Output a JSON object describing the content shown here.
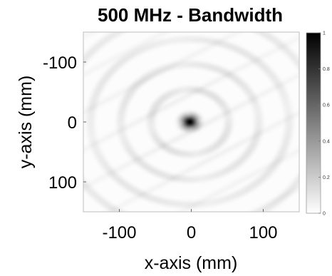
{
  "chart_data": {
    "type": "heatmap",
    "title": "500 MHz - Bandwidth",
    "xlabel": "x-axis (mm)",
    "ylabel": "y-axis (mm)",
    "xlim": [
      -150,
      150
    ],
    "ylim": [
      -150,
      150
    ],
    "y_reversed": true,
    "x_ticks": [
      {
        "value": -100,
        "label": "-100"
      },
      {
        "value": 0,
        "label": "0"
      },
      {
        "value": 100,
        "label": "100"
      }
    ],
    "y_ticks": [
      {
        "value": -100,
        "label": "-100"
      },
      {
        "value": 0,
        "label": "0"
      },
      {
        "value": 100,
        "label": "100"
      }
    ],
    "colormap": "gray-reversed",
    "clim": [
      0,
      1
    ],
    "colorbar_ticks": [
      {
        "value": 0,
        "label": "0"
      },
      {
        "value": 0.2,
        "label": "0.2"
      },
      {
        "value": 0.4,
        "label": "0.4"
      },
      {
        "value": 0.6,
        "label": "0.6"
      },
      {
        "value": 0.8,
        "label": "0.8"
      },
      {
        "value": 1,
        "label": "1"
      }
    ],
    "peak": {
      "x": -2,
      "y": 0,
      "value": 1
    },
    "ring_period_mm": 42,
    "ring_amplitude": 0.13
  }
}
